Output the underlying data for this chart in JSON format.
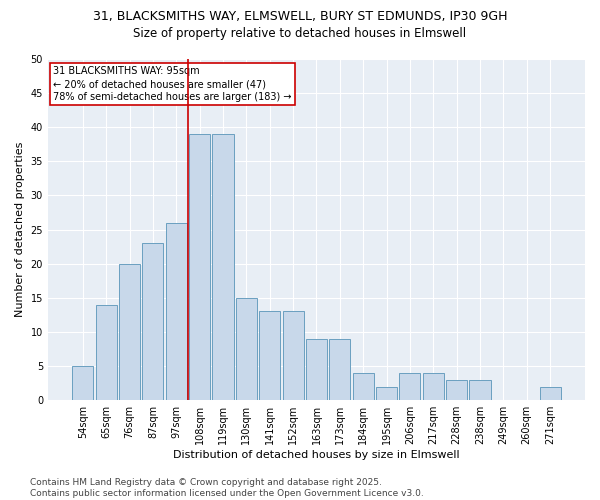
{
  "title1": "31, BLACKSMITHS WAY, ELMSWELL, BURY ST EDMUNDS, IP30 9GH",
  "title2": "Size of property relative to detached houses in Elmswell",
  "xlabel": "Distribution of detached houses by size in Elmswell",
  "ylabel": "Number of detached properties",
  "categories": [
    "54sqm",
    "65sqm",
    "76sqm",
    "87sqm",
    "97sqm",
    "108sqm",
    "119sqm",
    "130sqm",
    "141sqm",
    "152sqm",
    "163sqm",
    "173sqm",
    "184sqm",
    "195sqm",
    "206sqm",
    "217sqm",
    "228sqm",
    "238sqm",
    "249sqm",
    "260sqm",
    "271sqm"
  ],
  "values": [
    5,
    14,
    20,
    23,
    26,
    39,
    39,
    15,
    13,
    13,
    9,
    9,
    4,
    2,
    4,
    4,
    3,
    3,
    0,
    0,
    2
  ],
  "bar_color": "#c8d8ea",
  "bar_edge_color": "#6a9fc0",
  "vline_x_index": 4.5,
  "vline_color": "#cc0000",
  "annotation_text": "31 BLACKSMITHS WAY: 95sqm\n← 20% of detached houses are smaller (47)\n78% of semi-detached houses are larger (183) →",
  "annotation_box_edge": "#cc0000",
  "ylim": [
    0,
    50
  ],
  "yticks": [
    0,
    5,
    10,
    15,
    20,
    25,
    30,
    35,
    40,
    45,
    50
  ],
  "bg_color": "#ffffff",
  "plot_bg_color": "#e8eef5",
  "footer": "Contains HM Land Registry data © Crown copyright and database right 2025.\nContains public sector information licensed under the Open Government Licence v3.0.",
  "title_fontsize": 9,
  "subtitle_fontsize": 8.5,
  "xlabel_fontsize": 8,
  "ylabel_fontsize": 8,
  "tick_fontsize": 7,
  "footer_fontsize": 6.5
}
